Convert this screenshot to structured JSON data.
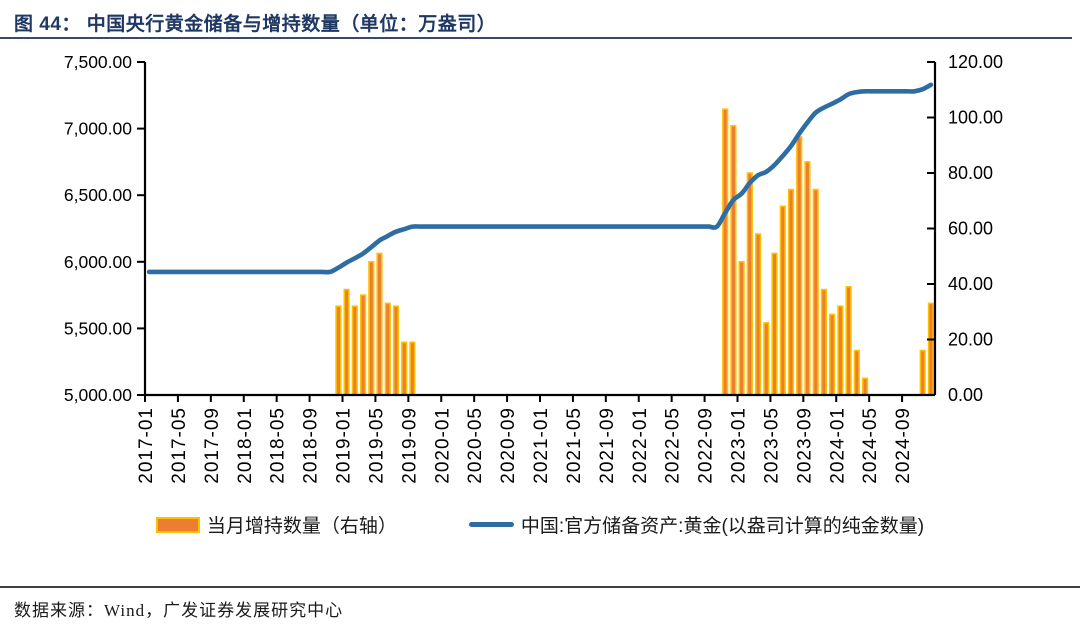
{
  "title": "图 44： 中国央行黄金储备与增持数量（单位：万盎司）",
  "footer": {
    "source": "数据来源：Wind，广发证券发展研究中心"
  },
  "colors": {
    "title": "#1F3864",
    "rule_top": "#3A4A66",
    "rule_bottom": "#404040",
    "bar_fill": "#ED7D31",
    "bar_border": "#FFC000",
    "line": "#2E6DA4",
    "axis": "#000000"
  },
  "chart_data": {
    "type": "combo",
    "title": "图 44： 中国央行黄金储备与增持数量（单位：万盎司）",
    "grid": "off",
    "legend_position": "bottom",
    "xlabel": "",
    "left_axis": {
      "label": "",
      "min": 5000,
      "max": 7500,
      "step": 500,
      "tick_labels": [
        "7,500.00",
        "7,000.00",
        "6,500.00",
        "6,000.00",
        "5,500.00",
        "5,000.00"
      ]
    },
    "right_axis": {
      "label": "",
      "min": 0,
      "max": 120,
      "step": 20,
      "tick_labels": [
        "120.00",
        "100.00",
        "80.00",
        "60.00",
        "40.00",
        "20.00",
        "0.00"
      ]
    },
    "x_tick_labels": [
      "2017-01",
      "2017-05",
      "2017-09",
      "2018-01",
      "2018-05",
      "2018-09",
      "2019-01",
      "2019-05",
      "2019-09",
      "2020-01",
      "2020-05",
      "2020-09",
      "2021-01",
      "2021-05",
      "2021-09",
      "2022-01",
      "2022-05",
      "2022-09",
      "2023-01",
      "2023-05",
      "2023-09",
      "2024-01",
      "2024-05",
      "2024-09"
    ],
    "months": [
      "2017-01",
      "2017-02",
      "2017-03",
      "2017-04",
      "2017-05",
      "2017-06",
      "2017-07",
      "2017-08",
      "2017-09",
      "2017-10",
      "2017-11",
      "2017-12",
      "2018-01",
      "2018-02",
      "2018-03",
      "2018-04",
      "2018-05",
      "2018-06",
      "2018-07",
      "2018-08",
      "2018-09",
      "2018-10",
      "2018-11",
      "2018-12",
      "2019-01",
      "2019-02",
      "2019-03",
      "2019-04",
      "2019-05",
      "2019-06",
      "2019-07",
      "2019-08",
      "2019-09",
      "2019-10",
      "2019-11",
      "2019-12",
      "2020-01",
      "2020-02",
      "2020-03",
      "2020-04",
      "2020-05",
      "2020-06",
      "2020-07",
      "2020-08",
      "2020-09",
      "2020-10",
      "2020-11",
      "2020-12",
      "2021-01",
      "2021-02",
      "2021-03",
      "2021-04",
      "2021-05",
      "2021-06",
      "2021-07",
      "2021-08",
      "2021-09",
      "2021-10",
      "2021-11",
      "2021-12",
      "2022-01",
      "2022-02",
      "2022-03",
      "2022-04",
      "2022-05",
      "2022-06",
      "2022-07",
      "2022-08",
      "2022-09",
      "2022-10",
      "2022-11",
      "2022-12",
      "2023-01",
      "2023-02",
      "2023-03",
      "2023-04",
      "2023-05",
      "2023-06",
      "2023-07",
      "2023-08",
      "2023-09",
      "2023-10",
      "2023-11",
      "2023-12",
      "2024-01",
      "2024-02",
      "2024-03",
      "2024-04",
      "2024-05",
      "2024-06",
      "2024-07",
      "2024-08",
      "2024-09",
      "2024-10",
      "2024-11",
      "2024-12"
    ],
    "series": [
      {
        "name": "当月增持数量（右轴）",
        "type": "bar",
        "axis": "right",
        "color": "#ED7D31",
        "border_color": "#FFC000",
        "values": [
          0,
          0,
          0,
          0,
          0,
          0,
          0,
          0,
          0,
          0,
          0,
          0,
          0,
          0,
          0,
          0,
          0,
          0,
          0,
          0,
          0,
          0,
          0,
          32,
          38,
          32,
          36,
          48,
          51,
          33,
          32,
          19,
          19,
          0,
          0,
          0,
          0,
          0,
          0,
          0,
          0,
          0,
          0,
          0,
          0,
          0,
          0,
          0,
          0,
          0,
          0,
          0,
          0,
          0,
          0,
          0,
          0,
          0,
          0,
          0,
          0,
          0,
          0,
          0,
          0,
          0,
          0,
          0,
          0,
          0,
          103,
          97,
          48,
          80,
          58,
          26,
          51,
          68,
          74,
          93,
          84,
          74,
          38,
          29,
          32,
          39,
          16,
          6,
          0,
          0,
          0,
          0,
          0,
          0,
          16,
          33
        ]
      },
      {
        "name": "中国:官方储备资产:黄金(以盎司计算的纯金数量)",
        "type": "line",
        "axis": "left",
        "color": "#2E6DA4",
        "values": [
          5924,
          5924,
          5924,
          5924,
          5924,
          5924,
          5924,
          5924,
          5924,
          5924,
          5924,
          5924,
          5924,
          5924,
          5924,
          5924,
          5924,
          5924,
          5924,
          5924,
          5924,
          5924,
          5924,
          5956,
          5994,
          6026,
          6062,
          6110,
          6161,
          6194,
          6226,
          6245,
          6264,
          6264,
          6264,
          6264,
          6264,
          6264,
          6264,
          6264,
          6264,
          6264,
          6264,
          6264,
          6264,
          6264,
          6264,
          6264,
          6264,
          6264,
          6264,
          6264,
          6264,
          6264,
          6264,
          6264,
          6264,
          6264,
          6264,
          6264,
          6264,
          6264,
          6264,
          6264,
          6264,
          6264,
          6264,
          6264,
          6264,
          6264,
          6367,
          6464,
          6512,
          6592,
          6650,
          6676,
          6727,
          6795,
          6869,
          6962,
          7046,
          7120,
          7158,
          7187,
          7219,
          7258,
          7274,
          7280,
          7280,
          7280,
          7280,
          7280,
          7280,
          7280,
          7296,
          7329
        ]
      }
    ]
  }
}
